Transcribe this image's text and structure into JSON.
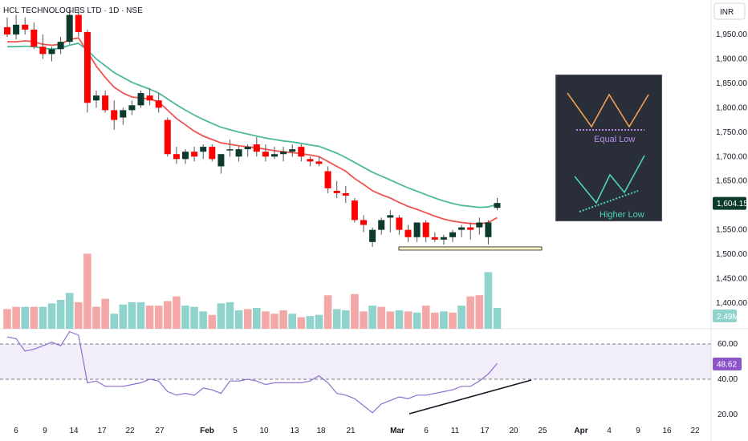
{
  "header": {
    "title": "HCL TECHNOLOGIES LTD · 1D · NSE",
    "currency": "INR"
  },
  "chart_data": {
    "type": "candlestick",
    "price_axis": {
      "ylim": [
        1370,
        2000
      ],
      "ticks": [
        "1,950.00",
        "1,900.00",
        "1,850.00",
        "1,800.00",
        "1,750.00",
        "1,700.00",
        "1,650.00",
        "1,550.00",
        "1,500.00",
        "1,450.00",
        "1,400.00"
      ],
      "tick_values": [
        1950,
        1900,
        1850,
        1800,
        1750,
        1700,
        1650,
        1550,
        1500,
        1450,
        1400
      ]
    },
    "last_price": {
      "label": "1,604.15",
      "value": 1604.15,
      "color": "#0c3b2e"
    },
    "volume_last": {
      "label": "2.49M",
      "color": "#8fd3cc"
    },
    "x_labels": [
      "6",
      "9",
      "14",
      "17",
      "22",
      "27",
      "Feb",
      "5",
      "10",
      "13",
      "18",
      "21",
      "Mar",
      "6",
      "11",
      "17",
      "20",
      "25",
      "Apr",
      "4",
      "9",
      "16",
      "22"
    ],
    "candles": [
      [
        1965,
        1985,
        1945,
        1950
      ],
      [
        1950,
        1990,
        1940,
        1970
      ],
      [
        1970,
        1985,
        1950,
        1960
      ],
      [
        1960,
        1975,
        1920,
        1925
      ],
      [
        1925,
        1950,
        1900,
        1910
      ],
      [
        1910,
        1925,
        1895,
        1920
      ],
      [
        1920,
        1945,
        1910,
        1935
      ],
      [
        1935,
        2005,
        1930,
        1990
      ],
      [
        1990,
        2005,
        1945,
        1955
      ],
      [
        1955,
        1960,
        1790,
        1810
      ],
      [
        1815,
        1835,
        1800,
        1825
      ],
      [
        1825,
        1835,
        1790,
        1795
      ],
      [
        1795,
        1815,
        1755,
        1775
      ],
      [
        1780,
        1800,
        1765,
        1795
      ],
      [
        1795,
        1815,
        1785,
        1805
      ],
      [
        1805,
        1835,
        1800,
        1830
      ],
      [
        1825,
        1840,
        1805,
        1815
      ],
      [
        1815,
        1830,
        1790,
        1800
      ],
      [
        1775,
        1780,
        1700,
        1705
      ],
      [
        1705,
        1720,
        1685,
        1695
      ],
      [
        1695,
        1715,
        1685,
        1710
      ],
      [
        1710,
        1720,
        1690,
        1700
      ],
      [
        1710,
        1725,
        1695,
        1720
      ],
      [
        1720,
        1725,
        1690,
        1695
      ],
      [
        1680,
        1705,
        1665,
        1705
      ],
      [
        1715,
        1735,
        1700,
        1715
      ],
      [
        1700,
        1720,
        1690,
        1715
      ],
      [
        1715,
        1725,
        1700,
        1720
      ],
      [
        1725,
        1740,
        1700,
        1710
      ],
      [
        1710,
        1725,
        1690,
        1700
      ],
      [
        1700,
        1720,
        1695,
        1705
      ],
      [
        1705,
        1720,
        1690,
        1710
      ],
      [
        1710,
        1725,
        1700,
        1715
      ],
      [
        1720,
        1725,
        1690,
        1700
      ],
      [
        1695,
        1700,
        1680,
        1690
      ],
      [
        1690,
        1700,
        1680,
        1685
      ],
      [
        1670,
        1680,
        1625,
        1635
      ],
      [
        1630,
        1650,
        1615,
        1625
      ],
      [
        1625,
        1640,
        1605,
        1620
      ],
      [
        1610,
        1615,
        1565,
        1570
      ],
      [
        1570,
        1580,
        1545,
        1560
      ],
      [
        1525,
        1555,
        1515,
        1550
      ],
      [
        1550,
        1575,
        1540,
        1570
      ],
      [
        1575,
        1590,
        1545,
        1580
      ],
      [
        1575,
        1580,
        1540,
        1550
      ],
      [
        1550,
        1560,
        1525,
        1535
      ],
      [
        1535,
        1565,
        1525,
        1565
      ],
      [
        1565,
        1570,
        1525,
        1535
      ],
      [
        1535,
        1545,
        1525,
        1530
      ],
      [
        1530,
        1540,
        1520,
        1535
      ],
      [
        1535,
        1550,
        1525,
        1545
      ],
      [
        1550,
        1560,
        1535,
        1555
      ],
      [
        1555,
        1565,
        1530,
        1550
      ],
      [
        1555,
        1575,
        1540,
        1565
      ],
      [
        1535,
        1570,
        1520,
        1565
      ],
      [
        1595,
        1615,
        1590,
        1605
      ]
    ],
    "volume": [
      [
        34,
        "#f4a7a7"
      ],
      [
        38,
        "#f4a7a7"
      ],
      [
        38,
        "#8fd3cc"
      ],
      [
        38,
        "#f4a7a7"
      ],
      [
        38,
        "#8fd3cc"
      ],
      [
        44,
        "#8fd3cc"
      ],
      [
        50,
        "#8fd3cc"
      ],
      [
        62,
        "#8fd3cc"
      ],
      [
        46,
        "#f4a7a7"
      ],
      [
        130,
        "#f4a7a7"
      ],
      [
        38,
        "#f4a7a7"
      ],
      [
        52,
        "#f4a7a7"
      ],
      [
        26,
        "#8fd3cc"
      ],
      [
        42,
        "#8fd3cc"
      ],
      [
        46,
        "#8fd3cc"
      ],
      [
        46,
        "#8fd3cc"
      ],
      [
        40,
        "#f4a7a7"
      ],
      [
        40,
        "#f4a7a7"
      ],
      [
        48,
        "#f4a7a7"
      ],
      [
        56,
        "#f4a7a7"
      ],
      [
        40,
        "#8fd3cc"
      ],
      [
        38,
        "#8fd3cc"
      ],
      [
        30,
        "#8fd3cc"
      ],
      [
        24,
        "#f4a7a7"
      ],
      [
        44,
        "#8fd3cc"
      ],
      [
        46,
        "#8fd3cc"
      ],
      [
        32,
        "#8fd3cc"
      ],
      [
        34,
        "#f4a7a7"
      ],
      [
        36,
        "#8fd3cc"
      ],
      [
        30,
        "#f4a7a7"
      ],
      [
        26,
        "#f4a7a7"
      ],
      [
        32,
        "#f4a7a7"
      ],
      [
        26,
        "#8fd3cc"
      ],
      [
        20,
        "#f4a7a7"
      ],
      [
        22,
        "#8fd3cc"
      ],
      [
        24,
        "#8fd3cc"
      ],
      [
        58,
        "#f4a7a7"
      ],
      [
        34,
        "#8fd3cc"
      ],
      [
        32,
        "#8fd3cc"
      ],
      [
        60,
        "#f4a7a7"
      ],
      [
        30,
        "#f4a7a7"
      ],
      [
        40,
        "#8fd3cc"
      ],
      [
        38,
        "#f4a7a7"
      ],
      [
        30,
        "#f4a7a7"
      ],
      [
        32,
        "#8fd3cc"
      ],
      [
        30,
        "#f4a7a7"
      ],
      [
        28,
        "#8fd3cc"
      ],
      [
        40,
        "#f4a7a7"
      ],
      [
        28,
        "#f4a7a7"
      ],
      [
        30,
        "#8fd3cc"
      ],
      [
        28,
        "#f4a7a7"
      ],
      [
        40,
        "#8fd3cc"
      ],
      [
        56,
        "#f4a7a7"
      ],
      [
        58,
        "#f4a7a7"
      ],
      [
        98,
        "#8fd3cc"
      ],
      [
        36,
        "#8fd3cc"
      ]
    ],
    "ema_fast": [
      1935,
      1935,
      1937,
      1935,
      1930,
      1928,
      1930,
      1940,
      1943,
      1915,
      1885,
      1862,
      1842,
      1830,
      1822,
      1820,
      1818,
      1812,
      1795,
      1778,
      1765,
      1752,
      1742,
      1735,
      1728,
      1725,
      1722,
      1720,
      1718,
      1715,
      1712,
      1710,
      1708,
      1706,
      1703,
      1700,
      1690,
      1680,
      1670,
      1655,
      1643,
      1630,
      1622,
      1615,
      1606,
      1598,
      1592,
      1585,
      1578,
      1572,
      1568,
      1565,
      1563,
      1562,
      1565,
      1575
    ],
    "ema_slow": [
      1925,
      1925,
      1926,
      1925,
      1922,
      1920,
      1922,
      1928,
      1932,
      1918,
      1900,
      1886,
      1872,
      1862,
      1852,
      1845,
      1838,
      1830,
      1818,
      1806,
      1795,
      1785,
      1776,
      1768,
      1760,
      1755,
      1750,
      1746,
      1742,
      1738,
      1735,
      1732,
      1730,
      1727,
      1724,
      1721,
      1714,
      1707,
      1698,
      1688,
      1678,
      1668,
      1660,
      1652,
      1644,
      1636,
      1629,
      1622,
      1615,
      1609,
      1604,
      1600,
      1598,
      1596,
      1597,
      1602
    ],
    "rsi": {
      "ticks": [
        "60.00",
        "40.00",
        "20.00"
      ],
      "tick_values": [
        60,
        40,
        20
      ],
      "ylim": [
        15,
        70
      ],
      "band": [
        40,
        60
      ],
      "last_label": "48.62",
      "last_value": 48.62,
      "values": [
        64,
        63,
        56,
        57,
        59,
        61,
        59,
        67,
        65,
        38,
        39,
        36,
        36,
        36,
        37,
        38,
        40,
        39,
        33,
        31,
        32,
        31,
        35,
        34,
        32,
        39,
        39,
        40,
        39,
        37,
        38,
        38,
        38,
        38,
        39,
        42,
        38,
        32,
        31,
        29,
        25,
        21,
        26,
        28,
        30,
        29,
        31,
        31,
        32,
        33,
        34,
        36,
        36,
        39,
        43,
        49
      ]
    },
    "support_zone": {
      "low": 1510,
      "high": 1515
    },
    "inset": {
      "top_label": "Equal Low",
      "bottom_label": "Higher Low"
    }
  }
}
